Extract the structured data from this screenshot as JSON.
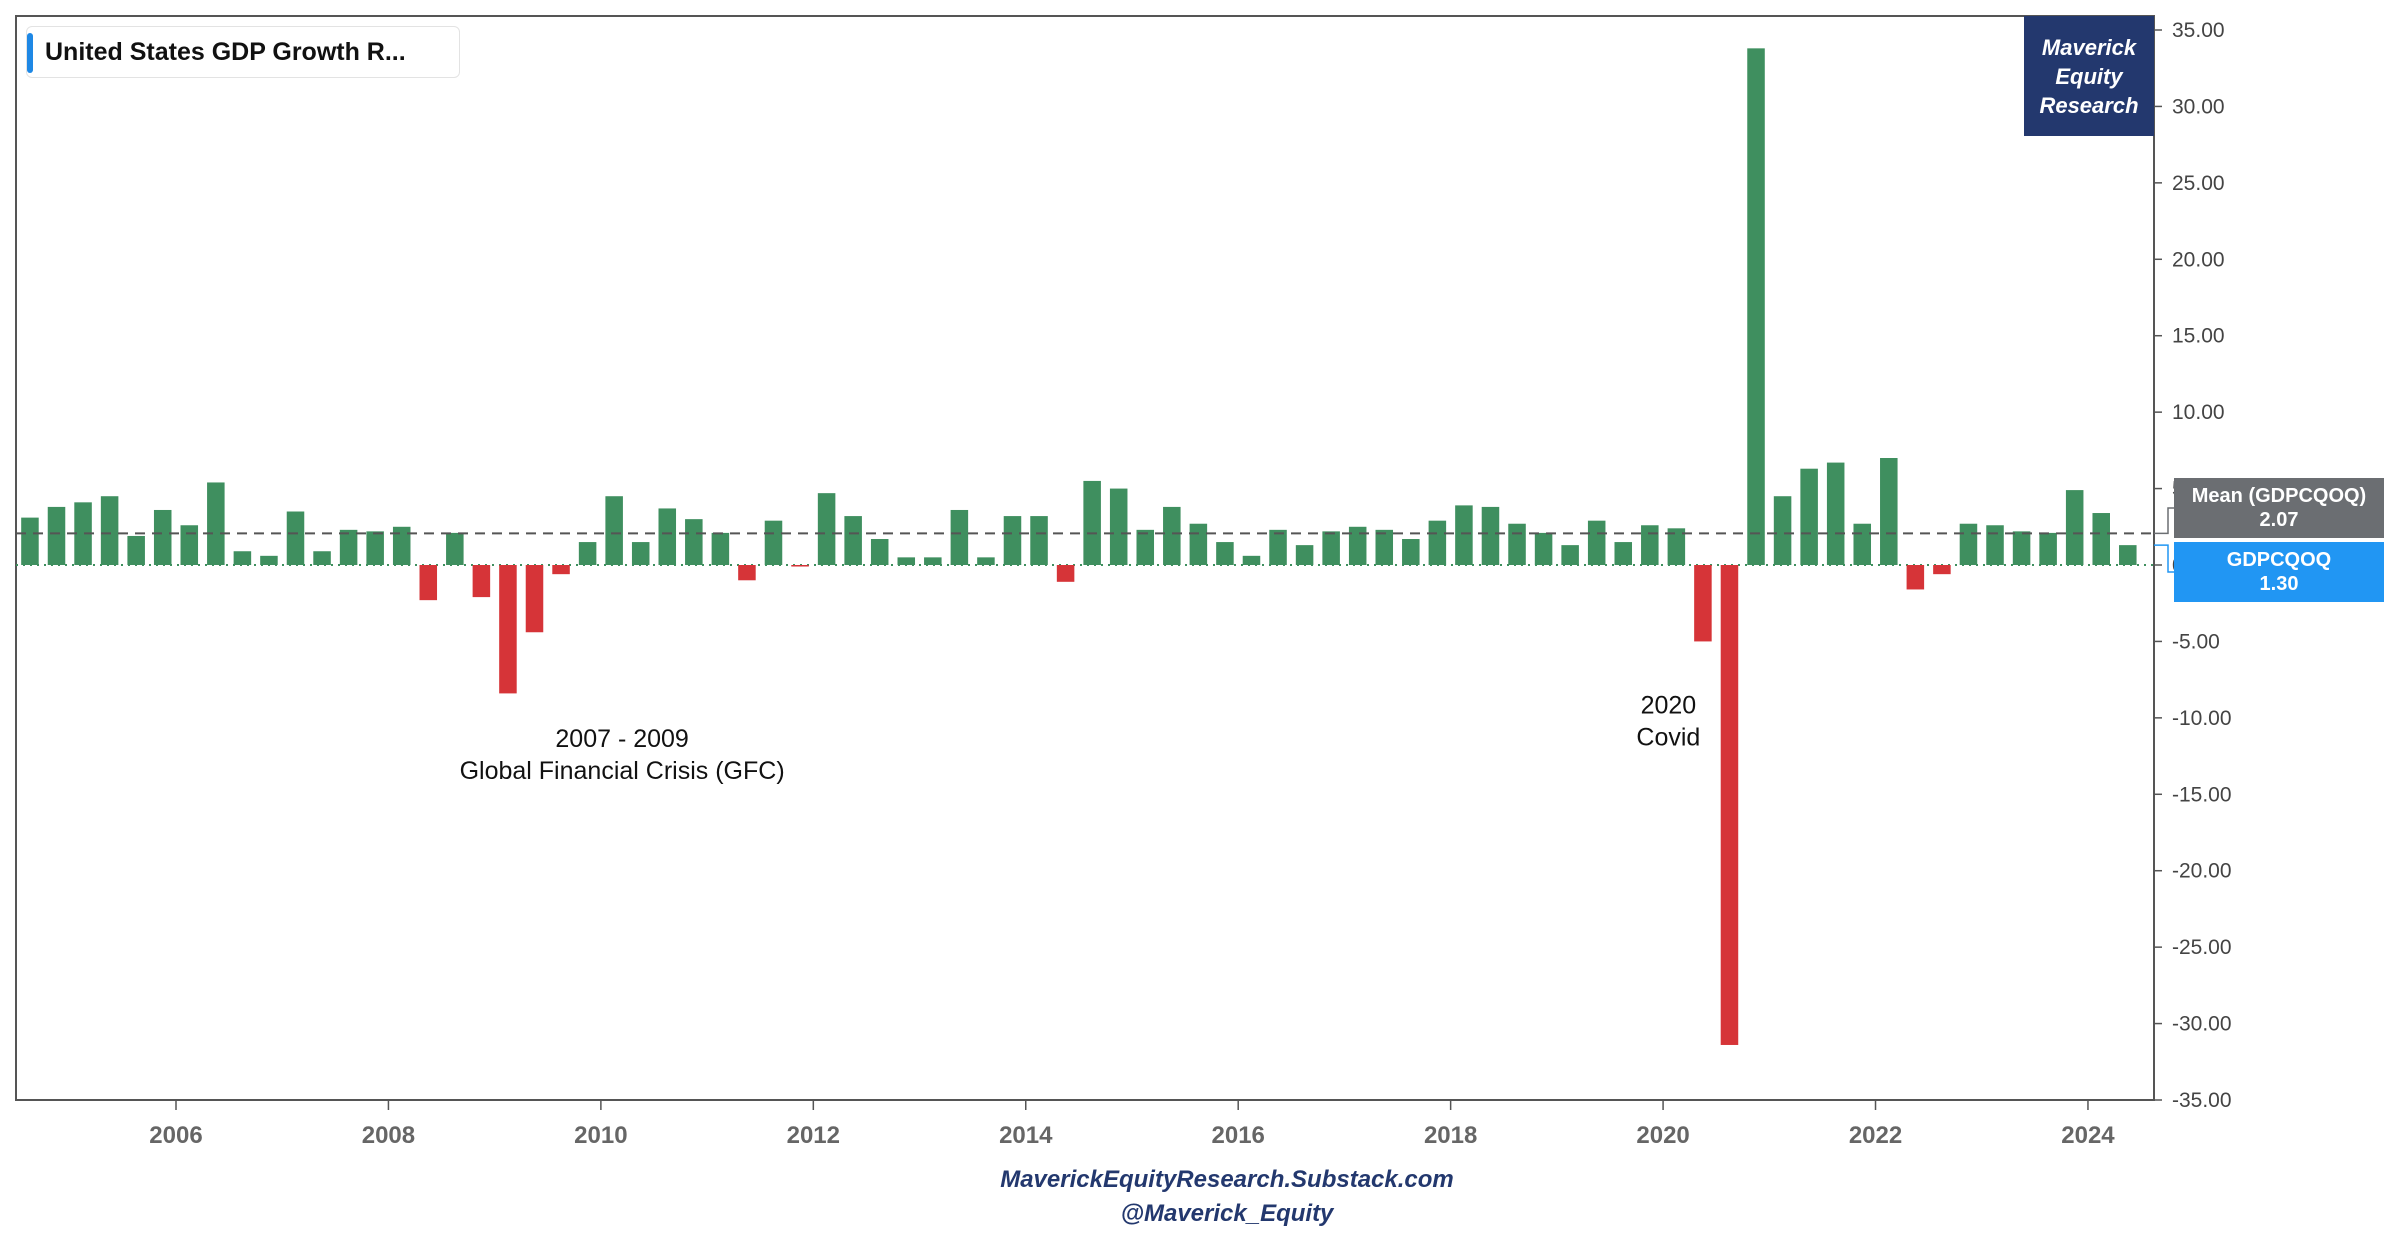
{
  "legend": {
    "label": "United States GDP Growth R..."
  },
  "brand": {
    "line1": "Maverick",
    "line2": "Equity",
    "line3": "Research"
  },
  "footer": {
    "line1": "MaverickEquityResearch.Substack.com",
    "line2": "@Maverick_Equity"
  },
  "colors": {
    "positive": "#3f8f5f",
    "negative": "#d63438",
    "mean_label": "#6b6e72",
    "current_label": "#2196f3",
    "brand": "#23386e"
  },
  "chart_data": {
    "type": "bar",
    "x_start": 2004.625,
    "x_step": 0.25,
    "values": [
      3.1,
      3.8,
      4.1,
      4.5,
      1.9,
      3.6,
      2.6,
      5.4,
      0.9,
      0.6,
      3.5,
      0.9,
      2.3,
      2.2,
      2.5,
      -2.3,
      2.1,
      -2.1,
      -8.4,
      -4.4,
      -0.6,
      1.5,
      4.5,
      1.5,
      3.7,
      3.0,
      2.1,
      -1.0,
      2.9,
      -0.1,
      4.7,
      3.2,
      1.7,
      0.5,
      0.5,
      3.6,
      0.5,
      3.2,
      3.2,
      -1.1,
      5.5,
      5.0,
      2.3,
      3.8,
      2.7,
      1.5,
      0.6,
      2.3,
      1.3,
      2.2,
      2.5,
      2.3,
      1.7,
      2.9,
      3.9,
      3.8,
      2.7,
      2.1,
      1.3,
      2.9,
      1.5,
      2.6,
      2.4,
      -5.0,
      -31.4,
      33.8,
      4.5,
      6.3,
      6.7,
      2.7,
      7.0,
      -1.6,
      -0.6,
      2.7,
      2.6,
      2.2,
      2.1,
      4.9,
      3.4,
      1.3
    ],
    "xlim": [
      2004.625,
      2024.75
    ],
    "ylim": [
      -35,
      35
    ],
    "y_ticks": [
      "35.00",
      "30.00",
      "25.00",
      "20.00",
      "15.00",
      "10.00",
      "5.00",
      "0.00",
      "-5.00",
      "-10.00",
      "-15.00",
      "-20.00",
      "-25.00",
      "-30.00",
      "-35.00"
    ],
    "y_tick_values": [
      35,
      30,
      25,
      20,
      15,
      10,
      5,
      0,
      -5,
      -10,
      -15,
      -20,
      -25,
      -30,
      -35
    ],
    "x_ticks": [
      "2006",
      "2008",
      "2010",
      "2012",
      "2014",
      "2016",
      "2018",
      "2020",
      "2022",
      "2024"
    ],
    "x_tick_values": [
      2006,
      2008,
      2010,
      2012,
      2014,
      2016,
      2018,
      2020,
      2022,
      2024
    ],
    "mean": {
      "label": "Mean (GDPCQOQ)",
      "value": 2.07,
      "display": "2.07"
    },
    "current": {
      "label": "GDPCQOQ",
      "value": 1.3,
      "display": "1.30"
    },
    "annotations": [
      {
        "lines": [
          "2007 - 2009",
          "Global Financial Crisis (GFC)"
        ],
        "x": 2010.2,
        "y": -11.9
      },
      {
        "lines": [
          "2020",
          "Covid"
        ],
        "x": 2020.05,
        "y": -9.7
      }
    ],
    "grid": false
  }
}
